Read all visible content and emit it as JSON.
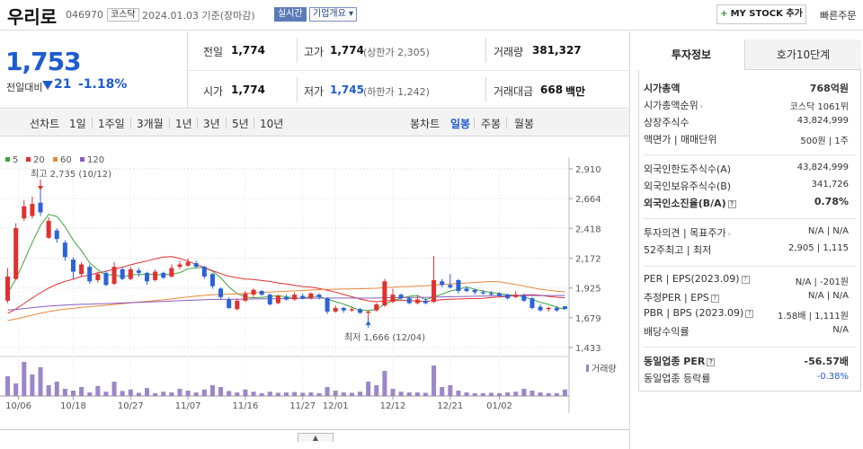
{
  "header": {
    "name": "우리로",
    "code": "046970",
    "market": "코스닥",
    "date_text": "2024.01.03 기준(장마감)",
    "realtime": "실시간",
    "overview": "기업개요",
    "mystock": "MY STOCK 추가",
    "quick_order": "빠른주문"
  },
  "quote": {
    "price": "1,753",
    "change_label": "전일대비",
    "change": "21",
    "change_pct": "-1.18%",
    "prev_label": "전일",
    "prev": "1,774",
    "high_label": "고가",
    "high": "1,774",
    "upper_limit": "(상한가 2,305)",
    "volume_label": "거래량",
    "volume": "381,327",
    "open_label": "시가",
    "open": "1,774",
    "low_label": "저가",
    "low": "1,745",
    "lower_limit": "(하한가 1,242)",
    "amount_label": "거래대금",
    "amount": "668",
    "amount_unit": "백만"
  },
  "period_tabs": {
    "line": "선차트",
    "items": [
      "1일",
      "1주일",
      "3개월",
      "1년",
      "3년",
      "5년",
      "10년"
    ]
  },
  "candle_tabs": {
    "label": "봉차트",
    "items": [
      "일봉",
      "주봉",
      "월봉"
    ],
    "active": "일봉"
  },
  "chart_data": {
    "type": "candlestick",
    "legend": [
      {
        "name": "5",
        "color": "#3aa53a"
      },
      {
        "name": "20",
        "color": "#e03030"
      },
      {
        "name": "60",
        "color": "#e8883a"
      },
      {
        "name": "120",
        "color": "#8a5cc0"
      }
    ],
    "y_ticks": [
      "2,910",
      "2,664",
      "2,418",
      "2,172",
      "1,925",
      "1,679",
      "1,433"
    ],
    "ylim": [
      1433,
      2910
    ],
    "x_ticks": [
      "10/06",
      "10/18",
      "10/27",
      "11/07",
      "11/16",
      "11/27",
      "12/01",
      "12/12",
      "12/21",
      "01/02"
    ],
    "high_note": "최고 2,735 (10/12)",
    "low_note": "최저 1,666 (12/04)",
    "volume_label": "거래량",
    "candles": [
      {
        "o": 1820,
        "c": 2020,
        "h": 2090,
        "l": 1800
      },
      {
        "o": 2000,
        "c": 2420,
        "h": 2460,
        "l": 1990
      },
      {
        "o": 2500,
        "c": 2600,
        "h": 2650,
        "l": 2480
      },
      {
        "o": 2520,
        "c": 2620,
        "h": 2680,
        "l": 2500
      },
      {
        "o": 2630,
        "c": 2550,
        "h": 2735,
        "l": 2520
      },
      {
        "o": 2340,
        "c": 2480,
        "h": 2510,
        "l": 2330
      },
      {
        "o": 2400,
        "c": 2330,
        "h": 2420,
        "l": 2300
      },
      {
        "o": 2300,
        "c": 2180,
        "h": 2320,
        "l": 2150
      },
      {
        "o": 2160,
        "c": 2060,
        "h": 2180,
        "l": 2000
      },
      {
        "o": 2040,
        "c": 2120,
        "h": 2140,
        "l": 2020
      },
      {
        "o": 2100,
        "c": 1980,
        "h": 2120,
        "l": 1960
      },
      {
        "o": 1990,
        "c": 2040,
        "h": 2060,
        "l": 1970
      },
      {
        "o": 2050,
        "c": 1950,
        "h": 2070,
        "l": 1940
      },
      {
        "o": 1960,
        "c": 2100,
        "h": 2140,
        "l": 1950
      },
      {
        "o": 2080,
        "c": 2000,
        "h": 2100,
        "l": 1990
      },
      {
        "o": 2000,
        "c": 2080,
        "h": 2100,
        "l": 1990
      },
      {
        "o": 2070,
        "c": 2050,
        "h": 2090,
        "l": 2020
      },
      {
        "o": 2050,
        "c": 1980,
        "h": 2060,
        "l": 1950
      },
      {
        "o": 1990,
        "c": 2060,
        "h": 2080,
        "l": 1980
      },
      {
        "o": 2050,
        "c": 2010,
        "h": 2060,
        "l": 2000
      },
      {
        "o": 2020,
        "c": 2090,
        "h": 2120,
        "l": 2010
      },
      {
        "o": 2100,
        "c": 2120,
        "h": 2150,
        "l": 2080
      },
      {
        "o": 2110,
        "c": 2140,
        "h": 2170,
        "l": 2100
      },
      {
        "o": 2130,
        "c": 2100,
        "h": 2150,
        "l": 2090
      },
      {
        "o": 2100,
        "c": 2020,
        "h": 2110,
        "l": 2000
      },
      {
        "o": 2040,
        "c": 1940,
        "h": 2050,
        "l": 1920
      },
      {
        "o": 1920,
        "c": 1850,
        "h": 1930,
        "l": 1830
      },
      {
        "o": 1830,
        "c": 1760,
        "h": 1850,
        "l": 1750
      },
      {
        "o": 1750,
        "c": 1820,
        "h": 1840,
        "l": 1740
      },
      {
        "o": 1820,
        "c": 1880,
        "h": 1900,
        "l": 1810
      },
      {
        "o": 1870,
        "c": 1910,
        "h": 1920,
        "l": 1850
      },
      {
        "o": 1900,
        "c": 1870,
        "h": 1910,
        "l": 1860
      },
      {
        "o": 1870,
        "c": 1790,
        "h": 1880,
        "l": 1780
      },
      {
        "o": 1800,
        "c": 1860,
        "h": 1870,
        "l": 1790
      },
      {
        "o": 1850,
        "c": 1830,
        "h": 1870,
        "l": 1820
      },
      {
        "o": 1830,
        "c": 1870,
        "h": 1890,
        "l": 1820
      },
      {
        "o": 1860,
        "c": 1840,
        "h": 1880,
        "l": 1830
      },
      {
        "o": 1840,
        "c": 1880,
        "h": 1890,
        "l": 1830
      },
      {
        "o": 1870,
        "c": 1850,
        "h": 1880,
        "l": 1830
      },
      {
        "o": 1840,
        "c": 1730,
        "h": 1850,
        "l": 1710
      },
      {
        "o": 1730,
        "c": 1760,
        "h": 1780,
        "l": 1720
      },
      {
        "o": 1760,
        "c": 1740,
        "h": 1770,
        "l": 1720
      },
      {
        "o": 1740,
        "c": 1750,
        "h": 1770,
        "l": 1730
      },
      {
        "o": 1750,
        "c": 1720,
        "h": 1760,
        "l": 1710
      },
      {
        "o": 1720,
        "c": 1730,
        "h": 1740,
        "l": 1666
      },
      {
        "o": 1740,
        "c": 1790,
        "h": 1800,
        "l": 1730
      },
      {
        "o": 1780,
        "c": 1980,
        "h": 2000,
        "l": 1770
      },
      {
        "o": 1810,
        "c": 1870,
        "h": 1920,
        "l": 1800
      },
      {
        "o": 1870,
        "c": 1840,
        "h": 1880,
        "l": 1830
      },
      {
        "o": 1840,
        "c": 1800,
        "h": 1850,
        "l": 1790
      },
      {
        "o": 1800,
        "c": 1830,
        "h": 1860,
        "l": 1790
      },
      {
        "o": 1820,
        "c": 1800,
        "h": 1840,
        "l": 1790
      },
      {
        "o": 1810,
        "c": 1990,
        "h": 2190,
        "l": 1800
      },
      {
        "o": 1980,
        "c": 1950,
        "h": 2000,
        "l": 1930
      },
      {
        "o": 1950,
        "c": 1930,
        "h": 2040,
        "l": 1920
      },
      {
        "o": 1990,
        "c": 1900,
        "h": 2000,
        "l": 1880
      },
      {
        "o": 1920,
        "c": 1900,
        "h": 1940,
        "l": 1890
      },
      {
        "o": 1910,
        "c": 1890,
        "h": 1920,
        "l": 1870
      },
      {
        "o": 1890,
        "c": 1880,
        "h": 1910,
        "l": 1870
      },
      {
        "o": 1880,
        "c": 1870,
        "h": 1900,
        "l": 1860
      },
      {
        "o": 1880,
        "c": 1860,
        "h": 1890,
        "l": 1850
      },
      {
        "o": 1870,
        "c": 1840,
        "h": 1880,
        "l": 1830
      },
      {
        "o": 1850,
        "c": 1870,
        "h": 1900,
        "l": 1840
      },
      {
        "o": 1860,
        "c": 1820,
        "h": 1880,
        "l": 1810
      },
      {
        "o": 1840,
        "c": 1760,
        "h": 1850,
        "l": 1750
      },
      {
        "o": 1770,
        "c": 1740,
        "h": 1790,
        "l": 1730
      },
      {
        "o": 1750,
        "c": 1760,
        "h": 1770,
        "l": 1730
      },
      {
        "o": 1760,
        "c": 1740,
        "h": 1780,
        "l": 1730
      },
      {
        "o": 1774,
        "c": 1753,
        "h": 1774,
        "l": 1745
      }
    ],
    "volumes": [
      55,
      35,
      95,
      60,
      80,
      30,
      40,
      20,
      15,
      25,
      10,
      28,
      12,
      40,
      14,
      18,
      9,
      22,
      8,
      12,
      10,
      20,
      15,
      10,
      18,
      30,
      25,
      14,
      10,
      18,
      12,
      8,
      12,
      9,
      10,
      11,
      9,
      10,
      8,
      25,
      15,
      10,
      9,
      12,
      40,
      30,
      70,
      20,
      12,
      10,
      10,
      9,
      85,
      25,
      30,
      15,
      10,
      8,
      8,
      9,
      8,
      10,
      12,
      20,
      15,
      10,
      8,
      8,
      18
    ]
  },
  "invest": {
    "tab_active": "투자정보",
    "tab_other": "호가10단계",
    "rows1": [
      {
        "label": "시가총액",
        "value": "768억원",
        "bold": true
      },
      {
        "label": "시가총액순위",
        "value": "코스닥 1061위"
      },
      {
        "label": "상장주식수",
        "value": "43,824,999"
      },
      {
        "label": "액면가 | 매매단위",
        "value": "500원 | 1주"
      }
    ],
    "rows2": [
      {
        "label": "외국인한도주식수(A)",
        "value": "43,824,999"
      },
      {
        "label": "외국인보유주식수(B)",
        "value": "341,726"
      },
      {
        "label": "외국인소진율(B/A)",
        "value": "0.78%",
        "bold": true
      }
    ],
    "rows3": [
      {
        "label": "투자의견 | 목표주가",
        "value": "N/A | N/A"
      },
      {
        "label": "52주최고 | 최저",
        "value": "2,905 | 1,115"
      }
    ],
    "rows4": [
      {
        "label": "PER | EPS(2023.09)",
        "value": "N/A | -201원"
      },
      {
        "label": "추정PER | EPS",
        "value": "N/A | N/A"
      },
      {
        "label": "PBR | BPS (2023.09)",
        "value": "1.58배 | 1,111원"
      },
      {
        "label": "배당수익률",
        "value": "N/A"
      }
    ],
    "rows5": [
      {
        "label": "동일업종 PER",
        "value": "-56.57배",
        "bold": true
      },
      {
        "label": "동일업종 등락률",
        "value": "-0.38%",
        "blue": true
      }
    ]
  }
}
